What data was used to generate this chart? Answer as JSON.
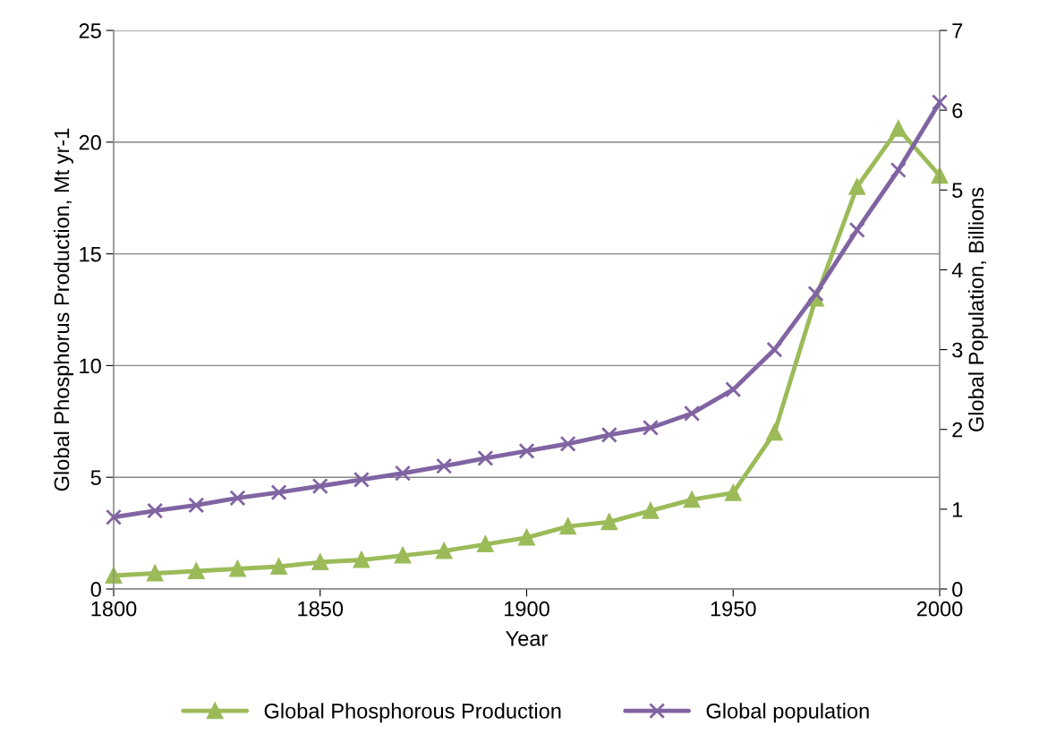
{
  "chart_data": {
    "type": "line",
    "xlabel": "Year",
    "ylabel": "Global Phosphorus Production, Mt yr-1",
    "y2label": "Global Population, Billions",
    "x": [
      1800,
      1810,
      1820,
      1830,
      1840,
      1850,
      1860,
      1870,
      1880,
      1890,
      1900,
      1910,
      1920,
      1930,
      1940,
      1950,
      1960,
      1970,
      1980,
      1990,
      2000
    ],
    "series": [
      {
        "name": "Global Phosphorous Production",
        "color": "#9bbb59",
        "marker": "triangle",
        "values": [
          0.6,
          0.7,
          0.8,
          0.9,
          1.0,
          1.2,
          1.3,
          1.5,
          1.7,
          2.0,
          2.3,
          2.8,
          3.0,
          3.5,
          4.0,
          4.3,
          7.0,
          13.0,
          18.0,
          20.6,
          18.5
        ]
      },
      {
        "name": "Global population",
        "color": "#8064a2",
        "marker": "cross",
        "axis": "y2",
        "values": [
          0.9,
          0.98,
          1.05,
          1.14,
          1.21,
          1.29,
          1.37,
          1.45,
          1.54,
          1.64,
          1.73,
          1.82,
          1.93,
          2.02,
          2.2,
          2.5,
          3.0,
          3.7,
          4.5,
          5.25,
          6.1
        ]
      }
    ],
    "xlim": [
      1800,
      2000
    ],
    "xticks": [
      1800,
      1850,
      1900,
      1950,
      2000
    ],
    "ylim": [
      0,
      25
    ],
    "yticks": [
      0,
      5,
      10,
      15,
      20,
      25
    ],
    "y2lim": [
      0,
      7
    ],
    "y2ticks": [
      0,
      1,
      2,
      3,
      4,
      5,
      6,
      7
    ],
    "grid": "y",
    "legend": "bottom",
    "line_style": "solid"
  }
}
